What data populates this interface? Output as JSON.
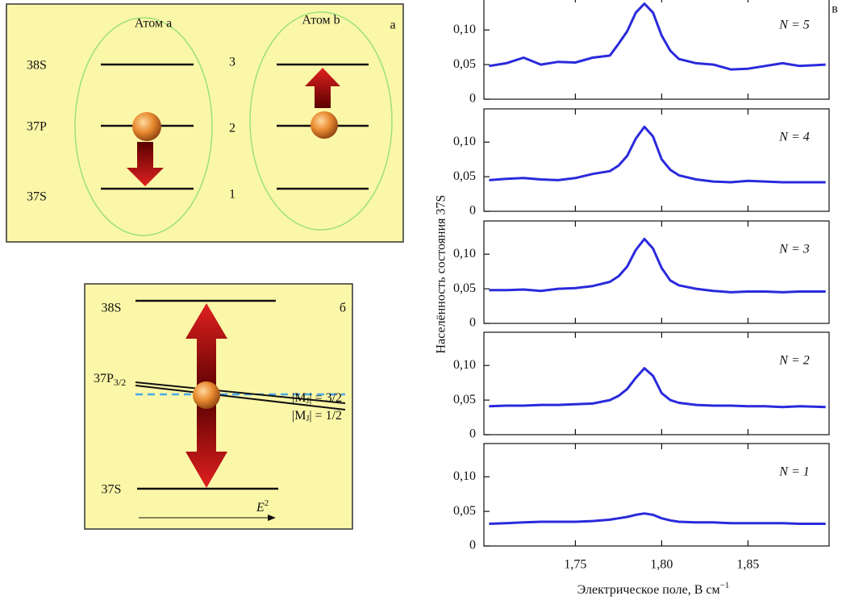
{
  "panel_a": {
    "label": "а",
    "atoms": [
      "Атом a",
      "Атом b"
    ],
    "levels": [
      "38S",
      "37P",
      "37S"
    ],
    "numbers": [
      "3",
      "2",
      "1"
    ]
  },
  "panel_b": {
    "label": "б",
    "top": "38S",
    "middle": {
      "main": "37P",
      "sub": "3/2"
    },
    "bottom": "37S",
    "mj": [
      {
        "pre": "|M",
        "sub": "J",
        "post": "| = 3/2"
      },
      {
        "pre": "|M",
        "sub": "J",
        "post": "| = 1/2"
      }
    ],
    "field": {
      "main": "E",
      "sup": "2"
    }
  },
  "figure": {
    "panel_label": "в",
    "ylabel": "Населённость состояния 37S",
    "xlabel": {
      "main": "Электрическое поле, В см",
      "sup": "−1"
    }
  },
  "chart_data": [
    {
      "type": "line",
      "annotation": "N = 5",
      "color": "#2a2adc",
      "xlim": [
        1.697,
        1.897
      ],
      "ylim": [
        0,
        0.148
      ],
      "yticks": [
        0,
        {
          "value": 0.05,
          "label": "0,05"
        },
        {
          "value": 0.1,
          "label": "0,10"
        }
      ],
      "x": [
        1.7,
        1.71,
        1.72,
        1.73,
        1.74,
        1.75,
        1.76,
        1.77,
        1.775,
        1.78,
        1.785,
        1.79,
        1.795,
        1.8,
        1.805,
        1.81,
        1.82,
        1.83,
        1.84,
        1.85,
        1.86,
        1.87,
        1.88,
        1.895
      ],
      "values": [
        0.048,
        0.052,
        0.06,
        0.05,
        0.054,
        0.053,
        0.06,
        0.063,
        0.08,
        0.098,
        0.125,
        0.138,
        0.125,
        0.092,
        0.07,
        0.058,
        0.052,
        0.05,
        0.043,
        0.044,
        0.048,
        0.052,
        0.048,
        0.05
      ]
    },
    {
      "type": "line",
      "annotation": "N = 4",
      "color": "#2a2adc",
      "xlim": [
        1.697,
        1.897
      ],
      "ylim": [
        0,
        0.148
      ],
      "yticks": [
        0,
        {
          "value": 0.05,
          "label": "0,05"
        },
        {
          "value": 0.1,
          "label": "0,10"
        }
      ],
      "x": [
        1.7,
        1.71,
        1.72,
        1.73,
        1.74,
        1.75,
        1.76,
        1.77,
        1.775,
        1.78,
        1.785,
        1.79,
        1.795,
        1.8,
        1.805,
        1.81,
        1.82,
        1.83,
        1.84,
        1.85,
        1.86,
        1.87,
        1.88,
        1.895
      ],
      "values": [
        0.045,
        0.047,
        0.048,
        0.046,
        0.045,
        0.048,
        0.054,
        0.058,
        0.066,
        0.08,
        0.105,
        0.122,
        0.108,
        0.075,
        0.06,
        0.052,
        0.046,
        0.043,
        0.042,
        0.044,
        0.043,
        0.042,
        0.042,
        0.042
      ]
    },
    {
      "type": "line",
      "annotation": "N = 3",
      "color": "#2a2adc",
      "xlim": [
        1.697,
        1.897
      ],
      "ylim": [
        0,
        0.148
      ],
      "yticks": [
        0,
        {
          "value": 0.05,
          "label": "0,05"
        },
        {
          "value": 0.1,
          "label": "0,10"
        }
      ],
      "x": [
        1.7,
        1.71,
        1.72,
        1.73,
        1.74,
        1.75,
        1.76,
        1.77,
        1.775,
        1.78,
        1.785,
        1.79,
        1.795,
        1.8,
        1.805,
        1.81,
        1.82,
        1.83,
        1.84,
        1.85,
        1.86,
        1.87,
        1.88,
        1.895
      ],
      "values": [
        0.048,
        0.048,
        0.049,
        0.047,
        0.05,
        0.051,
        0.054,
        0.06,
        0.068,
        0.082,
        0.106,
        0.122,
        0.108,
        0.08,
        0.062,
        0.055,
        0.05,
        0.047,
        0.045,
        0.046,
        0.046,
        0.045,
        0.046,
        0.046
      ]
    },
    {
      "type": "line",
      "annotation": "N = 2",
      "color": "#2a2adc",
      "xlim": [
        1.697,
        1.897
      ],
      "ylim": [
        0,
        0.148
      ],
      "yticks": [
        0,
        {
          "value": 0.05,
          "label": "0,05"
        },
        {
          "value": 0.1,
          "label": "0,10"
        }
      ],
      "x": [
        1.7,
        1.71,
        1.72,
        1.73,
        1.74,
        1.75,
        1.76,
        1.77,
        1.775,
        1.78,
        1.785,
        1.79,
        1.795,
        1.8,
        1.805,
        1.81,
        1.82,
        1.83,
        1.84,
        1.85,
        1.86,
        1.87,
        1.88,
        1.895
      ],
      "values": [
        0.041,
        0.042,
        0.042,
        0.043,
        0.043,
        0.044,
        0.045,
        0.05,
        0.056,
        0.066,
        0.082,
        0.096,
        0.085,
        0.06,
        0.05,
        0.046,
        0.043,
        0.042,
        0.042,
        0.041,
        0.041,
        0.04,
        0.041,
        0.04
      ]
    },
    {
      "type": "line",
      "annotation": "N = 1",
      "color": "#2a2adc",
      "xlim": [
        1.697,
        1.897
      ],
      "ylim": [
        0,
        0.148
      ],
      "yticks": [
        0,
        {
          "value": 0.05,
          "label": "0,05"
        },
        {
          "value": 0.1,
          "label": "0,10"
        }
      ],
      "xticks": [
        {
          "value": 1.75,
          "label": "1,75"
        },
        {
          "value": 1.8,
          "label": "1,80"
        },
        {
          "value": 1.85,
          "label": "1,85"
        }
      ],
      "x": [
        1.7,
        1.71,
        1.72,
        1.73,
        1.74,
        1.75,
        1.76,
        1.77,
        1.775,
        1.78,
        1.785,
        1.79,
        1.795,
        1.8,
        1.805,
        1.81,
        1.82,
        1.83,
        1.84,
        1.85,
        1.86,
        1.87,
        1.88,
        1.895
      ],
      "values": [
        0.032,
        0.033,
        0.034,
        0.035,
        0.035,
        0.035,
        0.036,
        0.038,
        0.04,
        0.042,
        0.045,
        0.047,
        0.045,
        0.04,
        0.037,
        0.035,
        0.034,
        0.034,
        0.033,
        0.033,
        0.033,
        0.033,
        0.032,
        0.032
      ]
    }
  ]
}
